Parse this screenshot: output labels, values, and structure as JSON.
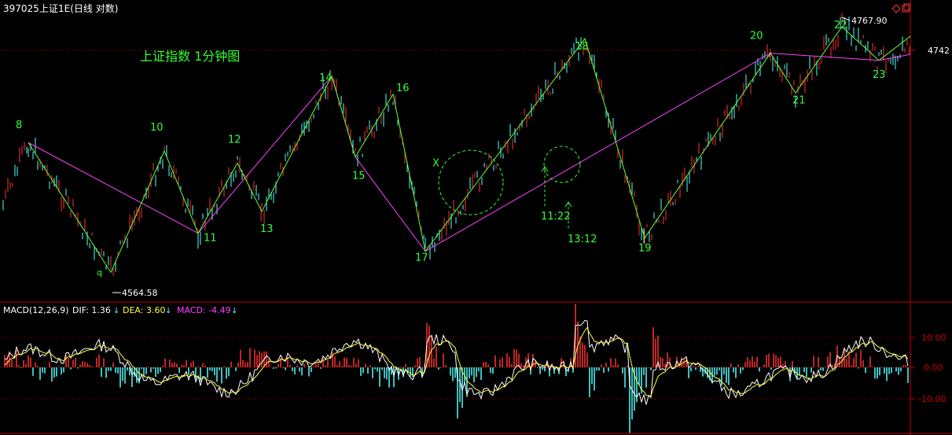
{
  "header": {
    "code": "397025",
    "name": "上证1E(日线 对数)"
  },
  "annotation_title": "上证指数 1分钟图",
  "price_axis": {
    "label": "4742"
  },
  "macd_header": {
    "title": "MACD(12,26,9)",
    "dif": "DIF: 1.36",
    "dea": "DEA: 3.60",
    "macd": "MACD: -4.49"
  },
  "colors": {
    "up": "#ff3333",
    "down": "#54ffff",
    "wave_line": "#66ff33",
    "trend_line": "#ff44ff",
    "label": "#33ff33",
    "axis": "#c80000",
    "dif_line": "#ffffff",
    "dea_line": "#ffff44",
    "grid": "#a00000"
  },
  "chart_data": [
    {
      "type": "line",
      "title": "上证指数 1分钟图",
      "ylabel": "",
      "ylim": [
        4540,
        4790
      ],
      "price_marks": [
        "4742"
      ],
      "extreme_labels": [
        "4564.58",
        "4767.90"
      ],
      "time_labels": [
        "11:22",
        "13:12"
      ],
      "wave_points": [
        {
          "label": "8",
          "x": 1,
          "y": 4672
        },
        {
          "label": "9",
          "x": 2,
          "y": 4564.58
        },
        {
          "label": "10",
          "x": 3,
          "y": 4665
        },
        {
          "label": "11",
          "x": 4,
          "y": 4597
        },
        {
          "label": "12",
          "x": 5,
          "y": 4655
        },
        {
          "label": "13",
          "x": 6,
          "y": 4615
        },
        {
          "label": "14",
          "x": 7,
          "y": 4727
        },
        {
          "label": "15",
          "x": 8,
          "y": 4660
        },
        {
          "label": "16",
          "x": 9,
          "y": 4712
        },
        {
          "label": "17",
          "x": 10,
          "y": 4582
        },
        {
          "label": "X",
          "x": 10.5,
          "y": 4655
        },
        {
          "label": "18",
          "x": 11,
          "y": 4758
        },
        {
          "label": "19",
          "x": 12,
          "y": 4593
        },
        {
          "label": "20",
          "x": 13,
          "y": 4746
        },
        {
          "label": "21",
          "x": 14,
          "y": 4713
        },
        {
          "label": "22",
          "x": 15,
          "y": 4767.9
        },
        {
          "label": "23",
          "x": 16,
          "y": 4740
        }
      ]
    },
    {
      "type": "bar",
      "title": "MACD(12,26,9)",
      "series": [
        {
          "name": "DIF",
          "last": 1.36
        },
        {
          "name": "DEA",
          "last": 3.6
        },
        {
          "name": "MACD",
          "last": -4.49
        }
      ],
      "ylim": [
        -20,
        20
      ],
      "yticks": [
        "10.00",
        "0.00",
        "-10.00"
      ]
    }
  ]
}
